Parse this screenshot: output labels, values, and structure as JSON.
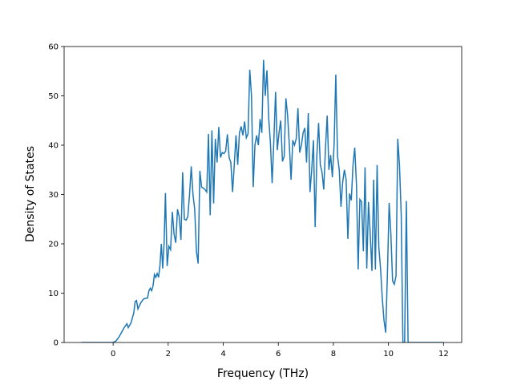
{
  "chart_data": {
    "type": "line",
    "xlabel": "Frequency (THz)",
    "ylabel": "Density of States",
    "xlim": [
      -1.78,
      12.66
    ],
    "ylim": [
      0,
      60
    ],
    "xticks": [
      0,
      2,
      4,
      6,
      8,
      10,
      12
    ],
    "yticks": [
      0,
      10,
      20,
      30,
      40,
      50,
      60
    ],
    "grid": false,
    "series": [
      {
        "name": null,
        "color": "#1f77b4",
        "x": [
          -1.15,
          0,
          0.1,
          0.2,
          0.3,
          0.4,
          0.5,
          0.55,
          0.65,
          0.75,
          0.8,
          0.85,
          0.9,
          1.0,
          1.1,
          1.2,
          1.25,
          1.3,
          1.35,
          1.4,
          1.45,
          1.5,
          1.55,
          1.6,
          1.65,
          1.7,
          1.75,
          1.8,
          1.85,
          1.9,
          1.9625,
          2.025,
          2.0875,
          2.15,
          2.2125,
          2.275,
          2.3375,
          2.4,
          2.4625,
          2.525,
          2.5875,
          2.65,
          2.7125,
          2.775,
          2.8375,
          2.9,
          2.9625,
          3.025,
          3.0875,
          3.15,
          3.2125,
          3.275,
          3.3375,
          3.4,
          3.4625,
          3.525,
          3.5875,
          3.65,
          3.7125,
          3.775,
          3.8375,
          3.9,
          3.9625,
          4.025,
          4.0875,
          4.15,
          4.2125,
          4.275,
          4.3375,
          4.4,
          4.4625,
          4.525,
          4.5875,
          4.65,
          4.7125,
          4.775,
          4.8375,
          4.9,
          4.9625,
          5.025,
          5.0875,
          5.15,
          5.2125,
          5.275,
          5.3375,
          5.4,
          5.4625,
          5.525,
          5.5875,
          5.65,
          5.7125,
          5.775,
          5.8375,
          5.9,
          5.9625,
          6.025,
          6.0875,
          6.15,
          6.2125,
          6.275,
          6.3375,
          6.4,
          6.4625,
          6.525,
          6.5875,
          6.65,
          6.7125,
          6.775,
          6.8375,
          6.9,
          6.9625,
          7.025,
          7.0875,
          7.15,
          7.2125,
          7.275,
          7.3375,
          7.4,
          7.4625,
          7.525,
          7.5875,
          7.65,
          7.7125,
          7.775,
          7.8375,
          7.9,
          7.9625,
          8.025,
          8.0875,
          8.15,
          8.2125,
          8.275,
          8.3375,
          8.4,
          8.4625,
          8.525,
          8.5875,
          8.65,
          8.7125,
          8.775,
          8.8375,
          8.9,
          8.9625,
          9.025,
          9.0875,
          9.15,
          9.2125,
          9.275,
          9.3375,
          9.4,
          9.4625,
          9.525,
          9.5875,
          9.65,
          9.7125,
          9.775,
          9.8375,
          9.9,
          9.9625,
          10.025,
          10.0875,
          10.15,
          10.2125,
          10.275,
          10.3375,
          10.4,
          10.4625,
          10.525,
          10.5875,
          10.65,
          10.7125,
          12
        ],
        "values": [
          0,
          0,
          0.3,
          1,
          2,
          3,
          3.8,
          3,
          4,
          6,
          8.3,
          8.5,
          6.8,
          8,
          8.8,
          9,
          9,
          10.5,
          11,
          10.5,
          11.5,
          13.8,
          13.2,
          14,
          13.2,
          15.5,
          20,
          15,
          20,
          30.3,
          15.5,
          19.5,
          18.8,
          26.5,
          22,
          20.2,
          27,
          25.5,
          20.8,
          34.5,
          25,
          24.8,
          25.5,
          30,
          35.7,
          30,
          27,
          18.5,
          16,
          34.8,
          31.5,
          31.3,
          31,
          30.5,
          42.3,
          25.8,
          43,
          28.2,
          41.3,
          36.5,
          43.7,
          37.5,
          38.5,
          38.3,
          38.8,
          42.2,
          37.5,
          36.5,
          30.5,
          36,
          42,
          36,
          42.5,
          43.8,
          42,
          44.8,
          41.5,
          42.3,
          55.3,
          50,
          31.5,
          40,
          42,
          40,
          45.3,
          42.5,
          57.3,
          50,
          55.2,
          45.5,
          40.5,
          32.3,
          41,
          50.8,
          39,
          42.5,
          45,
          36.7,
          37.7,
          49.5,
          46,
          40,
          33,
          41,
          40,
          41.3,
          47.5,
          38.5,
          40,
          42.5,
          43.5,
          36.5,
          46.5,
          30.5,
          35,
          41,
          23.4,
          38,
          44.5,
          36,
          34.5,
          31,
          39.5,
          46,
          35,
          38,
          33.5,
          40,
          54.3,
          37.8,
          35,
          27.5,
          32.5,
          35,
          33,
          21,
          30.2,
          28.8,
          36,
          39.5,
          32,
          14.8,
          29,
          28.5,
          18.5,
          35.5,
          15,
          28.5,
          22,
          14.5,
          33,
          14.8,
          36,
          19.3,
          15,
          9,
          4.5,
          2,
          14,
          28.3,
          22,
          12.5,
          11.8,
          13.5,
          41.3,
          36,
          26,
          0,
          0,
          28.7,
          0,
          0
        ]
      }
    ]
  }
}
